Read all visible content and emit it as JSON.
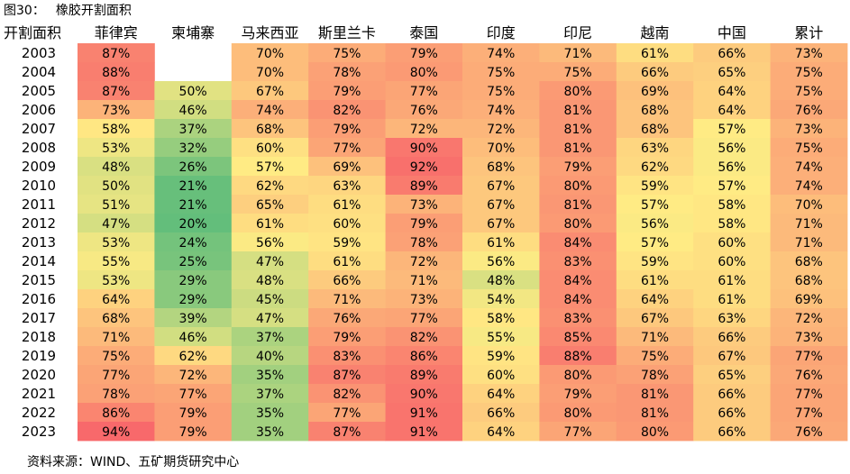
{
  "figure": {
    "label": "图30：",
    "title": "橡胶开割面积"
  },
  "source": "资料来源：WIND、五矿期货研究中心",
  "chart_data": {
    "type": "heatmap",
    "row_header": "开割面积",
    "columns": [
      "菲律宾",
      "柬埔寨",
      "马来西亚",
      "斯里兰卡",
      "泰国",
      "印度",
      "印尼",
      "越南",
      "中国",
      "累计"
    ],
    "rows": [
      "2003",
      "2004",
      "2005",
      "2006",
      "2007",
      "2008",
      "2009",
      "2010",
      "2011",
      "2012",
      "2013",
      "2014",
      "2015",
      "2016",
      "2017",
      "2018",
      "2019",
      "2020",
      "2021",
      "2022",
      "2023"
    ],
    "values": [
      [
        87,
        null,
        70,
        75,
        79,
        74,
        71,
        61,
        66,
        73
      ],
      [
        88,
        null,
        70,
        78,
        80,
        75,
        75,
        66,
        65,
        75
      ],
      [
        87,
        50,
        67,
        79,
        77,
        75,
        80,
        69,
        64,
        75
      ],
      [
        73,
        46,
        74,
        82,
        76,
        74,
        81,
        68,
        64,
        76
      ],
      [
        58,
        37,
        68,
        79,
        72,
        72,
        81,
        68,
        57,
        73
      ],
      [
        53,
        32,
        60,
        77,
        90,
        70,
        81,
        63,
        56,
        75
      ],
      [
        48,
        26,
        57,
        69,
        92,
        68,
        79,
        62,
        56,
        74
      ],
      [
        50,
        21,
        62,
        63,
        89,
        67,
        80,
        59,
        57,
        74
      ],
      [
        51,
        21,
        65,
        61,
        73,
        67,
        81,
        57,
        58,
        70
      ],
      [
        47,
        20,
        61,
        60,
        79,
        67,
        80,
        56,
        58,
        71
      ],
      [
        53,
        24,
        56,
        59,
        78,
        61,
        84,
        57,
        60,
        71
      ],
      [
        55,
        25,
        47,
        61,
        72,
        56,
        83,
        59,
        60,
        68
      ],
      [
        53,
        29,
        48,
        66,
        71,
        48,
        84,
        61,
        61,
        68
      ],
      [
        64,
        29,
        45,
        71,
        73,
        54,
        84,
        64,
        61,
        69
      ],
      [
        68,
        39,
        47,
        76,
        77,
        58,
        83,
        67,
        63,
        72
      ],
      [
        71,
        46,
        37,
        79,
        82,
        55,
        85,
        71,
        66,
        73
      ],
      [
        75,
        62,
        40,
        83,
        86,
        59,
        88,
        75,
        67,
        77
      ],
      [
        77,
        72,
        35,
        87,
        89,
        60,
        80,
        78,
        65,
        76
      ],
      [
        78,
        77,
        37,
        82,
        90,
        64,
        79,
        81,
        66,
        77
      ],
      [
        86,
        79,
        35,
        77,
        91,
        66,
        80,
        81,
        66,
        77
      ],
      [
        94,
        79,
        35,
        87,
        91,
        64,
        77,
        80,
        66,
        76
      ]
    ],
    "value_suffix": "%",
    "color_scale": {
      "min": 20,
      "mid": 57,
      "max": 94,
      "low_color": "#63be7b",
      "mid_color": "#ffeb84",
      "high_color": "#f8696b"
    }
  }
}
